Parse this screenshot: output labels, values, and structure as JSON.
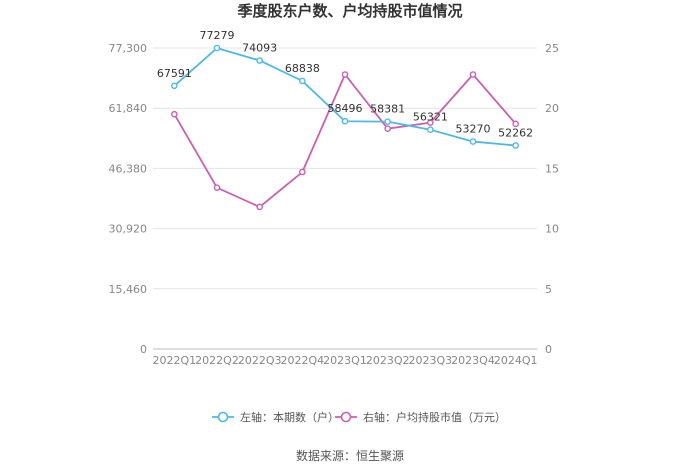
{
  "chart_data": {
    "type": "line",
    "title": "季度股东户数、户均持股市值情况",
    "categories": [
      "2022Q1",
      "2022Q2",
      "2022Q3",
      "2022Q4",
      "2023Q1",
      "2023Q2",
      "2023Q3",
      "2023Q4",
      "2024Q1"
    ],
    "left_axis": {
      "ticks": [
        "0",
        "15,460",
        "30,920",
        "46,380",
        "61,840",
        "77,300"
      ],
      "min": 0,
      "max": 77300
    },
    "right_axis": {
      "ticks": [
        "0",
        "5",
        "10",
        "15",
        "20",
        "25"
      ],
      "min": 0,
      "max": 25
    },
    "series": [
      {
        "name": "左轴：本期数（户）",
        "axis": "left",
        "color": "#4db8e8",
        "values": [
          67591,
          77279,
          74093,
          68838,
          58496,
          58381,
          56321,
          53270,
          52262
        ],
        "labels": [
          "67591",
          "77279",
          "74093",
          "68838",
          "58496",
          "58381",
          "56321",
          "53270",
          "52262"
        ]
      },
      {
        "name": "右轴：户均持股市值（万元）",
        "axis": "right",
        "color": "#cc5fae",
        "values": [
          19.5,
          13.4,
          11.8,
          14.7,
          22.8,
          18.3,
          18.8,
          22.8,
          18.7
        ]
      }
    ],
    "grid": true,
    "legend": "bottom-center"
  },
  "source": "数据来源：恒生聚源"
}
